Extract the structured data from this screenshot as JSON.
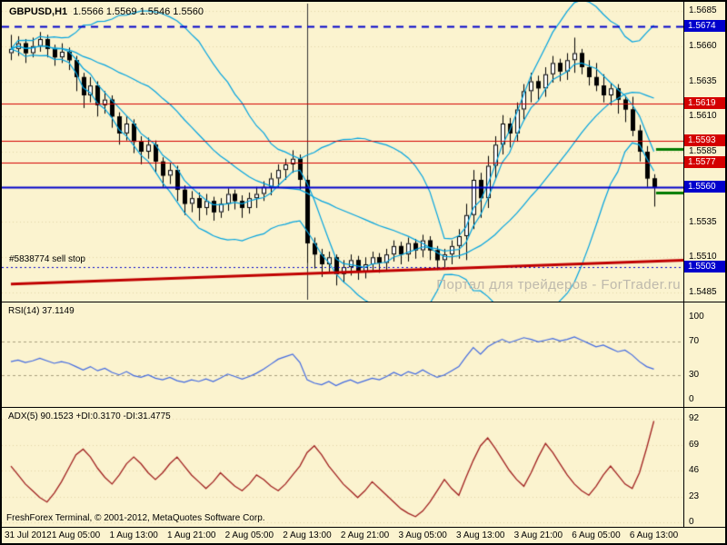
{
  "header": {
    "symbol": "GBPUSD,H1",
    "ohlc": "1.5566 1.5569 1.5546 1.5560"
  },
  "watermark": "Портал для трейдеров - ForTrader.ru",
  "status_bar": "FreshForex Terminal, © 2001-2012, MetaQuotes Software Corp.",
  "colors": {
    "background": "#FBF3CF",
    "frame": "#000000",
    "grid": "#E3D5A8",
    "candle": "#000000",
    "candle_up_fill": "#FFFFFF",
    "ma": "#00A3E0",
    "blue": "#0000CC",
    "red": "#D40000",
    "trend": "#C00000",
    "green": "#007A00",
    "vline": "#333333",
    "rsi_line": "#4169E1",
    "rsi_level": "#A89F7D",
    "adx_line": "#A02020",
    "watermark": "#BEB9AC",
    "box_text": "#FFFFFF"
  },
  "chart_data": [
    {
      "type": "candlestick",
      "panel": "main",
      "symbol": "GBPUSD",
      "timeframe": "H1",
      "last_bar": {
        "open": 1.5566,
        "high": 1.5569,
        "low": 1.5546,
        "close": 1.556
      },
      "ylim": [
        1.5485,
        1.5685
      ],
      "y_ticks": [
        1.5685,
        1.566,
        1.5635,
        1.561,
        1.5585,
        1.556,
        1.5535,
        1.551,
        1.5485
      ],
      "time_labels": [
        {
          "text": "31 Jul 2012",
          "bar": 1
        },
        {
          "text": "1 Aug 05:00",
          "bar": 9
        },
        {
          "text": "1 Aug 13:00",
          "bar": 17
        },
        {
          "text": "1 Aug 21:00",
          "bar": 25
        },
        {
          "text": "2 Aug 05:00",
          "bar": 33
        },
        {
          "text": "2 Aug 13:00",
          "bar": 41
        },
        {
          "text": "2 Aug 21:00",
          "bar": 49
        },
        {
          "text": "3 Aug 05:00",
          "bar": 57
        },
        {
          "text": "3 Aug 13:00",
          "bar": 65
        },
        {
          "text": "3 Aug 21:00",
          "bar": 73
        },
        {
          "text": "6 Aug 05:00",
          "bar": 81
        },
        {
          "text": "6 Aug 13:00",
          "bar": 89
        }
      ],
      "candles": [
        [
          1.5655,
          1.5668,
          1.565,
          1.5658
        ],
        [
          1.5658,
          1.5667,
          1.5653,
          1.5662
        ],
        [
          1.5662,
          1.5665,
          1.5648,
          1.5655
        ],
        [
          1.5655,
          1.5666,
          1.5652,
          1.566
        ],
        [
          1.566,
          1.567,
          1.5656,
          1.5665
        ],
        [
          1.5665,
          1.5668,
          1.5652,
          1.5658
        ],
        [
          1.5658,
          1.5661,
          1.5646,
          1.5652
        ],
        [
          1.5652,
          1.5662,
          1.5648,
          1.5656
        ],
        [
          1.5656,
          1.5659,
          1.5643,
          1.565
        ],
        [
          1.565,
          1.5653,
          1.5628,
          1.5638
        ],
        [
          1.5638,
          1.5641,
          1.5616,
          1.5625
        ],
        [
          1.5625,
          1.5638,
          1.562,
          1.5632
        ],
        [
          1.5632,
          1.5635,
          1.561,
          1.5618
        ],
        [
          1.5618,
          1.5628,
          1.5612,
          1.5622
        ],
        [
          1.5622,
          1.5625,
          1.5602,
          1.561
        ],
        [
          1.561,
          1.5613,
          1.559,
          1.5598
        ],
        [
          1.5598,
          1.561,
          1.5593,
          1.5605
        ],
        [
          1.5605,
          1.5608,
          1.5584,
          1.5592
        ],
        [
          1.5592,
          1.5596,
          1.5576,
          1.5585
        ],
        [
          1.5585,
          1.5595,
          1.558,
          1.559
        ],
        [
          1.559,
          1.5593,
          1.557,
          1.5578
        ],
        [
          1.5578,
          1.5581,
          1.556,
          1.5568
        ],
        [
          1.5568,
          1.5577,
          1.5562,
          1.5572
        ],
        [
          1.5572,
          1.5575,
          1.555,
          1.5558
        ],
        [
          1.5558,
          1.5561,
          1.554,
          1.5548
        ],
        [
          1.5548,
          1.5557,
          1.5542,
          1.5552
        ],
        [
          1.5552,
          1.5556,
          1.5536,
          1.5545
        ],
        [
          1.5545,
          1.5555,
          1.554,
          1.555
        ],
        [
          1.555,
          1.5553,
          1.5536,
          1.5542
        ],
        [
          1.5542,
          1.5552,
          1.5538,
          1.5548
        ],
        [
          1.5548,
          1.5559,
          1.5543,
          1.5555
        ],
        [
          1.5555,
          1.5558,
          1.5544,
          1.555
        ],
        [
          1.555,
          1.5554,
          1.5538,
          1.5545
        ],
        [
          1.5545,
          1.5556,
          1.5541,
          1.5552
        ],
        [
          1.5552,
          1.556,
          1.5545,
          1.5555
        ],
        [
          1.5555,
          1.5564,
          1.555,
          1.556
        ],
        [
          1.556,
          1.557,
          1.5554,
          1.5566
        ],
        [
          1.5566,
          1.5576,
          1.556,
          1.5572
        ],
        [
          1.5572,
          1.558,
          1.5565,
          1.5576
        ],
        [
          1.5576,
          1.5586,
          1.557,
          1.558
        ],
        [
          1.558,
          1.5583,
          1.5558,
          1.5565
        ],
        [
          1.5565,
          1.5568,
          1.5506,
          1.552
        ],
        [
          1.552,
          1.5524,
          1.5502,
          1.5512
        ],
        [
          1.5512,
          1.5516,
          1.5496,
          1.5505
        ],
        [
          1.5505,
          1.5514,
          1.5499,
          1.551
        ],
        [
          1.551,
          1.5512,
          1.549,
          1.5498
        ],
        [
          1.5498,
          1.5508,
          1.5492,
          1.5503
        ],
        [
          1.5503,
          1.5512,
          1.5497,
          1.5508
        ],
        [
          1.5508,
          1.5511,
          1.5494,
          1.55
        ],
        [
          1.55,
          1.551,
          1.5495,
          1.5505
        ],
        [
          1.5505,
          1.5514,
          1.55,
          1.551
        ],
        [
          1.551,
          1.5513,
          1.5499,
          1.5506
        ],
        [
          1.5506,
          1.5516,
          1.5501,
          1.5512
        ],
        [
          1.5512,
          1.5522,
          1.5507,
          1.5518
        ],
        [
          1.5518,
          1.5521,
          1.5505,
          1.5512
        ],
        [
          1.5512,
          1.5524,
          1.5507,
          1.552
        ],
        [
          1.552,
          1.5523,
          1.5509,
          1.5515
        ],
        [
          1.5515,
          1.5526,
          1.551,
          1.5522
        ],
        [
          1.5522,
          1.5525,
          1.5508,
          1.5515
        ],
        [
          1.5515,
          1.5518,
          1.5501,
          1.5508
        ],
        [
          1.5508,
          1.5516,
          1.5503,
          1.5512
        ],
        [
          1.5512,
          1.5522,
          1.5505,
          1.5518
        ],
        [
          1.5518,
          1.553,
          1.5509,
          1.5525
        ],
        [
          1.5525,
          1.5548,
          1.5508,
          1.554
        ],
        [
          1.554,
          1.5572,
          1.553,
          1.5565
        ],
        [
          1.5565,
          1.557,
          1.5538,
          1.5552
        ],
        [
          1.5552,
          1.5582,
          1.5545,
          1.5575
        ],
        [
          1.5575,
          1.5596,
          1.5566,
          1.559
        ],
        [
          1.559,
          1.5611,
          1.5583,
          1.5605
        ],
        [
          1.5605,
          1.5609,
          1.5588,
          1.5598
        ],
        [
          1.5598,
          1.562,
          1.5592,
          1.5615
        ],
        [
          1.5615,
          1.5633,
          1.5608,
          1.5628
        ],
        [
          1.5628,
          1.5641,
          1.562,
          1.5635
        ],
        [
          1.5635,
          1.5639,
          1.5622,
          1.563
        ],
        [
          1.563,
          1.5645,
          1.5624,
          1.564
        ],
        [
          1.564,
          1.5653,
          1.5634,
          1.5648
        ],
        [
          1.5648,
          1.5651,
          1.5635,
          1.5642
        ],
        [
          1.5642,
          1.5655,
          1.5636,
          1.565
        ],
        [
          1.565,
          1.5666,
          1.5641,
          1.5655
        ],
        [
          1.5655,
          1.5658,
          1.564,
          1.5645
        ],
        [
          1.5645,
          1.565,
          1.5632,
          1.5638
        ],
        [
          1.5638,
          1.5648,
          1.5628,
          1.5632
        ],
        [
          1.5632,
          1.564,
          1.562,
          1.5625
        ],
        [
          1.5625,
          1.5634,
          1.5618,
          1.563
        ],
        [
          1.563,
          1.5633,
          1.5612,
          1.5622
        ],
        [
          1.5622,
          1.5625,
          1.5606,
          1.5615
        ],
        [
          1.5615,
          1.5624,
          1.5596,
          1.56
        ],
        [
          1.56,
          1.5604,
          1.5578,
          1.5585
        ],
        [
          1.5585,
          1.5589,
          1.556,
          1.5566
        ],
        [
          1.5566,
          1.5569,
          1.5546,
          1.556
        ]
      ],
      "overlays": {
        "levels": [
          {
            "price": 1.5674,
            "label": "1.5674",
            "color": "blue",
            "style": "dashed",
            "width": 2,
            "box": true
          },
          {
            "price": 1.5619,
            "label": "1.5619",
            "color": "red",
            "style": "solid",
            "width": 1,
            "box": true
          },
          {
            "price": 1.5593,
            "label": "1.5593",
            "color": "red",
            "style": "solid",
            "width": 1,
            "box": true
          },
          {
            "price": 1.5577,
            "label": "1.5577",
            "color": "red",
            "style": "solid",
            "width": 1,
            "box": true
          },
          {
            "price": 1.556,
            "label": "1.5560",
            "color": "blue",
            "style": "solid",
            "width": 2,
            "box": true
          }
        ],
        "sell_stop": {
          "price": 1.5503,
          "label": "1.5503",
          "text": "#5838774 sell stop",
          "style": "dotted",
          "color": "blue"
        },
        "trendline": {
          "from_bar": 0,
          "from_price": 1.5491,
          "to_bar": 94,
          "to_price": 1.5508,
          "color": "red",
          "width": 3
        },
        "green_segments": [
          {
            "price": 1.5587,
            "from_bar": 89.3,
            "to_bar": 94
          },
          {
            "price": 1.5556,
            "from_bar": 89.3,
            "to_bar": 94
          }
        ],
        "vline_bar": 41,
        "moving_averages": {
          "fast_period": 5,
          "band_period": 20,
          "band_deviation": 2
        }
      }
    },
    {
      "type": "line",
      "panel": "indicator",
      "indicator": "RSI",
      "label": "RSI(14) 37.1149",
      "value": 37.1149,
      "ylim": [
        0,
        100
      ],
      "y_ticks": [
        100,
        70,
        30,
        0
      ],
      "levels": [
        70,
        30
      ],
      "values": [
        46,
        48,
        45,
        47,
        50,
        47,
        44,
        46,
        44,
        40,
        36,
        40,
        35,
        38,
        33,
        30,
        34,
        29,
        27,
        30,
        26,
        24,
        27,
        23,
        21,
        24,
        22,
        25,
        22,
        26,
        31,
        28,
        25,
        28,
        32,
        37,
        43,
        49,
        52,
        55,
        45,
        24,
        20,
        18,
        22,
        17,
        21,
        24,
        20,
        23,
        26,
        24,
        28,
        33,
        29,
        34,
        31,
        36,
        31,
        27,
        30,
        35,
        40,
        52,
        63,
        55,
        64,
        69,
        73,
        69,
        72,
        75,
        73,
        70,
        72,
        74,
        71,
        73,
        76,
        72,
        68,
        64,
        66,
        62,
        58,
        60,
        54,
        46,
        40,
        37
      ]
    },
    {
      "type": "line",
      "panel": "indicator",
      "indicator": "ADX",
      "label": "ADX(5) 90.1523 +DI:0.3170 -DI:31.4775",
      "adx": 90.1523,
      "plus_di": 0.317,
      "minus_di": 31.4775,
      "ylim": [
        0,
        92
      ],
      "y_ticks": [
        92,
        69,
        46,
        23,
        0
      ],
      "values": [
        50,
        42,
        34,
        28,
        22,
        18,
        26,
        36,
        48,
        60,
        65,
        58,
        48,
        40,
        34,
        42,
        52,
        58,
        52,
        44,
        38,
        44,
        52,
        58,
        50,
        42,
        36,
        30,
        36,
        44,
        38,
        32,
        28,
        34,
        42,
        38,
        32,
        28,
        34,
        42,
        50,
        62,
        68,
        60,
        50,
        42,
        34,
        28,
        22,
        28,
        36,
        30,
        24,
        18,
        12,
        8,
        5,
        10,
        18,
        28,
        38,
        30,
        24,
        40,
        55,
        68,
        75,
        66,
        56,
        46,
        38,
        32,
        44,
        58,
        70,
        62,
        52,
        42,
        34,
        28,
        24,
        32,
        42,
        50,
        42,
        34,
        30,
        44,
        66,
        90
      ]
    }
  ]
}
